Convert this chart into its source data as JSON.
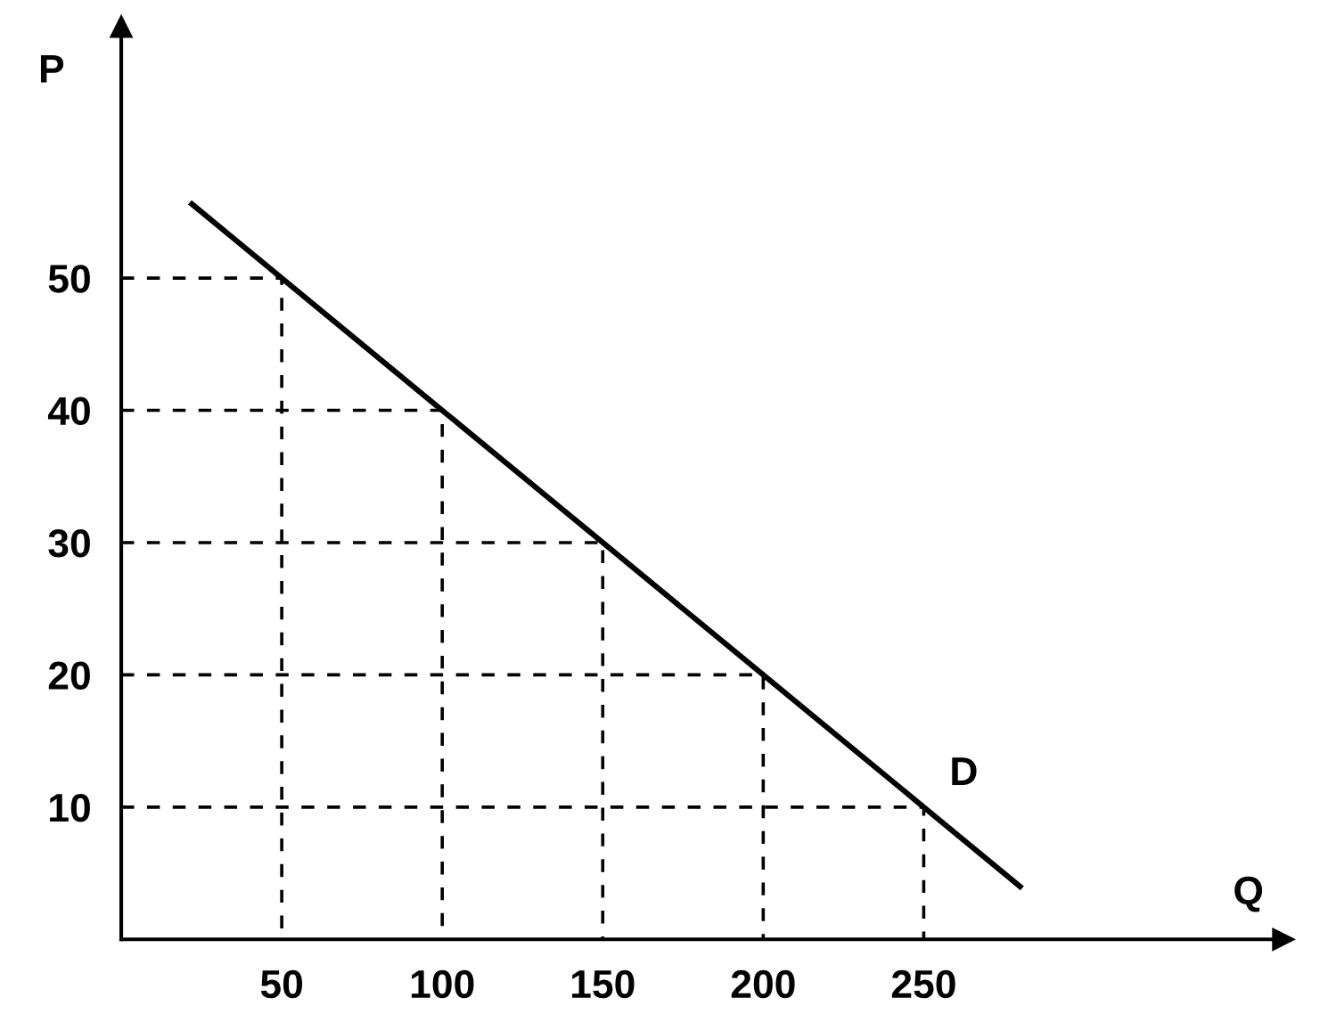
{
  "chart_data": {
    "type": "line",
    "xlabel": "Q",
    "ylabel": "P",
    "series": [
      {
        "color": "#000000",
        "x": [
          22,
          50,
          100,
          150,
          200,
          250,
          280
        ],
        "values": [
          55.6,
          50,
          40,
          30,
          20,
          10,
          4
        ]
      },
      {
        "color": "#000000",
        "line_style": "dashed",
        "x": [
          0,
          50,
          50
        ],
        "values": [
          50,
          50,
          0
        ]
      },
      {
        "color": "#000000",
        "line_style": "dashed",
        "x": [
          0,
          100,
          100
        ],
        "values": [
          40,
          40,
          0
        ]
      },
      {
        "color": "#000000",
        "line_style": "dashed",
        "x": [
          0,
          150,
          150
        ],
        "values": [
          30,
          30,
          0
        ]
      },
      {
        "color": "#000000",
        "line_style": "dashed",
        "x": [
          0,
          200,
          200
        ],
        "values": [
          20,
          20,
          0
        ]
      },
      {
        "color": "#000000",
        "line_style": "dashed",
        "x": [
          0,
          250,
          250
        ],
        "values": [
          10,
          10,
          0
        ]
      }
    ],
    "annotations": [
      "D"
    ],
    "xlim": [
      0,
      362
    ],
    "ylim": [
      0,
      69
    ],
    "xticks": [
      50,
      100,
      150,
      200,
      250
    ],
    "yticks": [
      10,
      20,
      30,
      40,
      50
    ],
    "grid": false,
    "marker": "none",
    "line_style": "solid"
  }
}
